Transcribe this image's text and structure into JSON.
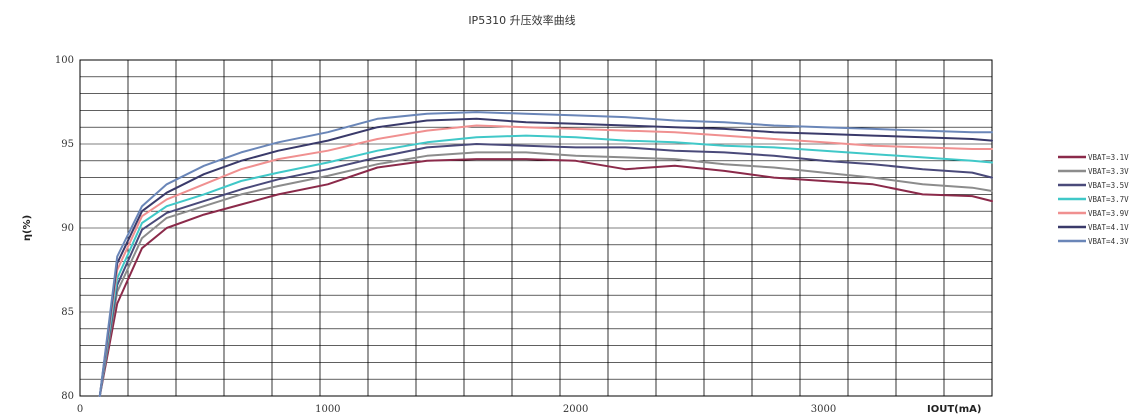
{
  "chart_data": {
    "type": "line",
    "title": "IP5310 升压效率曲线",
    "xlabel": "IOUT(mA)",
    "ylabel": "η(%)",
    "xlim": [
      0,
      3200
    ],
    "ylim": [
      80,
      100
    ],
    "xticks": [
      0,
      1000,
      2000,
      3000
    ],
    "xtick_labels": [
      "0",
      "1000",
      "2000",
      "3000"
    ],
    "yticks": [
      80,
      85,
      90,
      95,
      100
    ],
    "ytick_labels": [
      "80",
      "85",
      "90",
      "95",
      "100"
    ],
    "grid": true,
    "legend_position": "right",
    "x": [
      80,
      150,
      250,
      350,
      500,
      650,
      800,
      1000,
      1200,
      1400,
      1600,
      1800,
      2000,
      2200,
      2400,
      2600,
      2800,
      3000,
      3200,
      3400,
      3600,
      3680
    ],
    "series": [
      {
        "name": "VBAT=3.1V",
        "color": "#8b2a4a",
        "values": [
          80.0,
          85.5,
          88.8,
          90.0,
          90.8,
          91.4,
          92.0,
          92.6,
          93.6,
          94.0,
          94.1,
          94.1,
          94.0,
          93.5,
          93.7,
          93.4,
          93.0,
          92.8,
          92.6,
          92.0,
          91.9,
          91.6
        ]
      },
      {
        "name": "VBAT=3.3V",
        "color": "#8c8c8c",
        "values": [
          80.0,
          86.2,
          89.4,
          90.6,
          91.3,
          92.0,
          92.5,
          93.1,
          93.8,
          94.3,
          94.5,
          94.5,
          94.3,
          94.2,
          94.1,
          93.8,
          93.6,
          93.3,
          93.0,
          92.6,
          92.4,
          92.2
        ]
      },
      {
        "name": "VBAT=3.5V",
        "color": "#4a4a7a",
        "values": [
          80.0,
          86.6,
          89.9,
          90.9,
          91.6,
          92.3,
          92.9,
          93.5,
          94.2,
          94.8,
          95.0,
          94.9,
          94.8,
          94.8,
          94.6,
          94.5,
          94.3,
          94.0,
          93.8,
          93.5,
          93.3,
          93.0
        ]
      },
      {
        "name": "VBAT=3.7V",
        "color": "#40c8c8",
        "values": [
          80.0,
          87.0,
          90.3,
          91.3,
          92.0,
          92.8,
          93.3,
          93.9,
          94.6,
          95.1,
          95.4,
          95.5,
          95.4,
          95.2,
          95.1,
          94.9,
          94.8,
          94.6,
          94.4,
          94.2,
          94.0,
          93.9
        ]
      },
      {
        "name": "VBAT=3.9V",
        "color": "#f09090",
        "values": [
          80.0,
          87.5,
          90.7,
          91.7,
          92.6,
          93.5,
          94.1,
          94.6,
          95.3,
          95.8,
          96.1,
          96.0,
          95.9,
          95.8,
          95.7,
          95.5,
          95.3,
          95.1,
          94.9,
          94.8,
          94.7,
          94.7
        ]
      },
      {
        "name": "VBAT=4.1V",
        "color": "#3a3a6a",
        "values": [
          80.0,
          87.9,
          91.0,
          92.1,
          93.2,
          94.0,
          94.6,
          95.2,
          96.0,
          96.4,
          96.5,
          96.3,
          96.2,
          96.1,
          96.0,
          95.9,
          95.7,
          95.6,
          95.5,
          95.4,
          95.3,
          95.2
        ]
      },
      {
        "name": "VBAT=4.3V",
        "color": "#6a86b8",
        "values": [
          80.0,
          88.3,
          91.3,
          92.6,
          93.7,
          94.5,
          95.1,
          95.7,
          96.5,
          96.8,
          96.9,
          96.8,
          96.7,
          96.6,
          96.4,
          96.3,
          96.1,
          96.0,
          95.9,
          95.8,
          95.7,
          95.7
        ]
      }
    ]
  }
}
